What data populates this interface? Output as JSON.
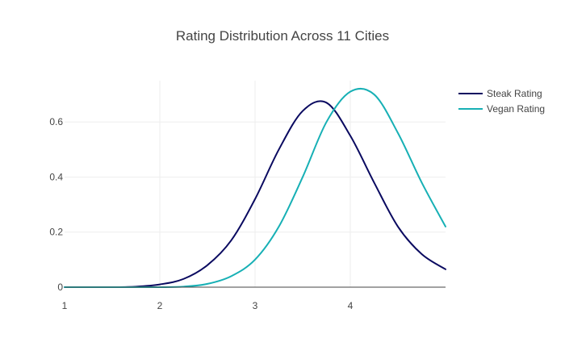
{
  "chart_data": {
    "type": "line",
    "title": "Rating Distribution Across 11 Cities",
    "xlabel": "",
    "ylabel": "",
    "xlim": [
      1,
      5
    ],
    "ylim": [
      0,
      0.75
    ],
    "x_ticks": [
      1,
      2,
      3,
      4
    ],
    "y_ticks": [
      0,
      0.2,
      0.4,
      0.6
    ],
    "y_tick_labels": [
      "0",
      "0.2",
      "0.4",
      "0.6"
    ],
    "grid": true,
    "legend_position": "top-right",
    "x": [
      1.0,
      1.25,
      1.5,
      1.75,
      2.0,
      2.25,
      2.5,
      2.75,
      3.0,
      3.25,
      3.5,
      3.75,
      4.0,
      4.25,
      4.5,
      4.75,
      5.0
    ],
    "series": [
      {
        "name": "Steak Rating",
        "color": "#0a0a60",
        "values": [
          0.0,
          0.0,
          0.0,
          0.002,
          0.01,
          0.03,
          0.08,
          0.17,
          0.32,
          0.5,
          0.64,
          0.67,
          0.55,
          0.38,
          0.22,
          0.12,
          0.065
        ]
      },
      {
        "name": "Vegan Rating",
        "color": "#17b0b5",
        "values": [
          0.0,
          0.0,
          0.0,
          0.0,
          0.0,
          0.002,
          0.012,
          0.04,
          0.1,
          0.22,
          0.4,
          0.6,
          0.71,
          0.7,
          0.56,
          0.38,
          0.22
        ]
      }
    ]
  }
}
